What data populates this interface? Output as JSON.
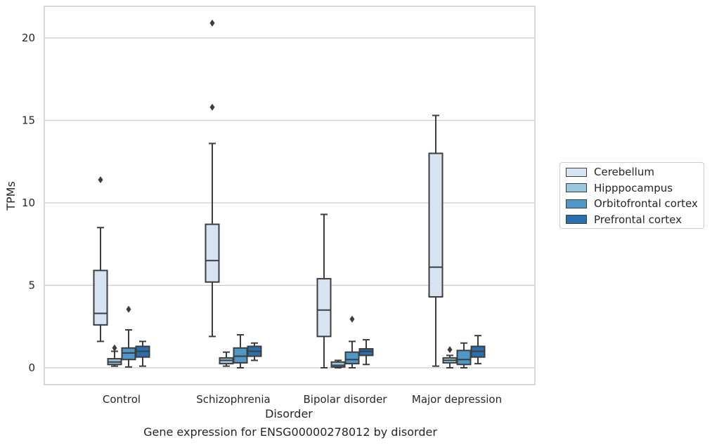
{
  "caption": "Gene expression for ENSG00000278012 by disorder",
  "colors": {
    "Cerebellum": "#d6e4f1",
    "Hipppocampus": "#9ac6de",
    "Orbitofrontal cortex": "#4f97c6",
    "Prefrontal cortex": "#2a6fad"
  },
  "chart_data": {
    "type": "box",
    "title": "",
    "xlabel": "Disorder",
    "ylabel": "TPMs",
    "ylim": [
      -1,
      22
    ],
    "yticks": [
      0,
      5,
      10,
      15,
      20
    ],
    "grid": "horizontal",
    "legend_position": "right",
    "categories": [
      "Control",
      "Schizophrenia",
      "Bipolar disorder",
      "Major depression"
    ],
    "series": [
      {
        "name": "Cerebellum",
        "boxes": [
          {
            "whisker_low": 1.6,
            "q1": 2.6,
            "median": 3.3,
            "q3": 5.9,
            "whisker_high": 8.5,
            "outliers": [
              11.4
            ]
          },
          {
            "whisker_low": 1.9,
            "q1": 5.2,
            "median": 6.5,
            "q3": 8.7,
            "whisker_high": 13.6,
            "outliers": [
              15.8,
              20.9
            ]
          },
          {
            "whisker_low": 0.0,
            "q1": 1.9,
            "median": 3.5,
            "q3": 5.4,
            "whisker_high": 9.3,
            "outliers": []
          },
          {
            "whisker_low": 0.1,
            "q1": 4.3,
            "median": 6.1,
            "q3": 13.0,
            "whisker_high": 15.3,
            "outliers": []
          }
        ]
      },
      {
        "name": "Hipppocampus",
        "boxes": [
          {
            "whisker_low": 0.1,
            "q1": 0.2,
            "median": 0.35,
            "q3": 0.55,
            "whisker_high": 1.0,
            "outliers": [
              1.2
            ]
          },
          {
            "whisker_low": 0.1,
            "q1": 0.25,
            "median": 0.45,
            "q3": 0.6,
            "whisker_high": 0.95,
            "outliers": []
          },
          {
            "whisker_low": 0.0,
            "q1": 0.05,
            "median": 0.15,
            "q3": 0.35,
            "whisker_high": 0.45,
            "outliers": []
          },
          {
            "whisker_low": 0.0,
            "q1": 0.3,
            "median": 0.45,
            "q3": 0.6,
            "whisker_high": 0.75,
            "outliers": [
              1.1
            ]
          }
        ]
      },
      {
        "name": "Orbitofrontal cortex",
        "boxes": [
          {
            "whisker_low": 0.05,
            "q1": 0.5,
            "median": 0.9,
            "q3": 1.2,
            "whisker_high": 2.3,
            "outliers": [
              3.55
            ]
          },
          {
            "whisker_low": 0.0,
            "q1": 0.3,
            "median": 0.7,
            "q3": 1.2,
            "whisker_high": 2.0,
            "outliers": []
          },
          {
            "whisker_low": 0.0,
            "q1": 0.25,
            "median": 0.5,
            "q3": 0.95,
            "whisker_high": 1.6,
            "outliers": [
              2.95
            ]
          },
          {
            "whisker_low": 0.0,
            "q1": 0.2,
            "median": 0.5,
            "q3": 1.05,
            "whisker_high": 1.5,
            "outliers": []
          }
        ]
      },
      {
        "name": "Prefrontal cortex",
        "boxes": [
          {
            "whisker_low": 0.1,
            "q1": 0.65,
            "median": 1.0,
            "q3": 1.3,
            "whisker_high": 1.6,
            "outliers": []
          },
          {
            "whisker_low": 0.45,
            "q1": 0.7,
            "median": 1.0,
            "q3": 1.3,
            "whisker_high": 1.5,
            "outliers": []
          },
          {
            "whisker_low": 0.2,
            "q1": 0.75,
            "median": 1.0,
            "q3": 1.15,
            "whisker_high": 1.7,
            "outliers": []
          },
          {
            "whisker_low": 0.25,
            "q1": 0.65,
            "median": 1.0,
            "q3": 1.3,
            "whisker_high": 1.95,
            "outliers": []
          }
        ]
      }
    ]
  }
}
